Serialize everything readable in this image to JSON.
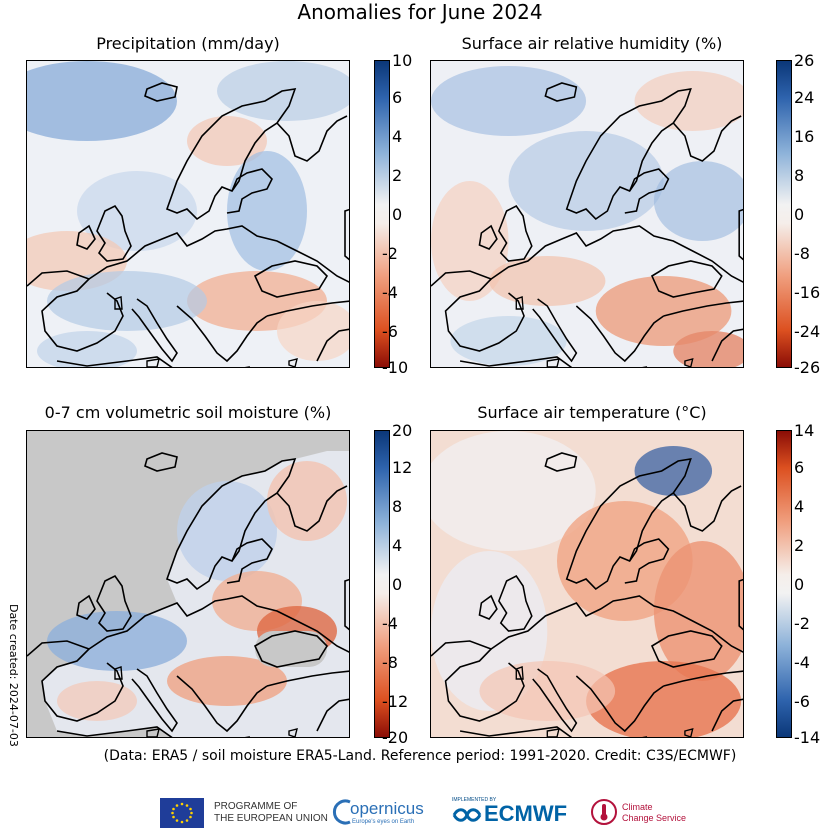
{
  "title": "Anomalies for June 2024",
  "footer": "(Data: ERA5 / soil moisture ERA5-Land.  Reference period: 1991-2020.  Credit: C3S/ECMWF)",
  "date_created": "Date created: 2024-07-03",
  "colors": {
    "wet": "#2b5ea8",
    "dry": "#c23010",
    "neutral": "#f5f3f0",
    "land_mask": "#c8c8c8",
    "coast": "#000000"
  },
  "panels": [
    {
      "title": "Precipitation (mm/day)",
      "colorbar_ticks": [
        "10",
        "6",
        "4",
        "2",
        "0",
        "-2",
        "-4",
        "-6",
        "-10"
      ],
      "colorbar_scheme": "blue-top"
    },
    {
      "title": "Surface air relative humidity (%)",
      "colorbar_ticks": [
        "26",
        "24",
        "16",
        "8",
        "0",
        "-8",
        "-16",
        "-24",
        "-26"
      ],
      "colorbar_scheme": "blue-top"
    },
    {
      "title": "0-7 cm volumetric soil moisture (%)",
      "colorbar_ticks": [
        "20",
        "12",
        "8",
        "4",
        "0",
        "-4",
        "-8",
        "-12",
        "-20"
      ],
      "colorbar_scheme": "blue-top"
    },
    {
      "title": "Surface air temperature (°C)",
      "colorbar_ticks": [
        "14",
        "6",
        "4",
        "2",
        "0",
        "-2",
        "-4",
        "-6",
        "-14"
      ],
      "colorbar_scheme": "red-top"
    }
  ],
  "logos": {
    "eu": {
      "line1": "PROGRAMME OF",
      "line2": "THE EUROPEAN UNION"
    },
    "copernicus": {
      "name": "opernicus",
      "tagline": "Europe's eyes on Earth"
    },
    "ecmwf": {
      "implemented": "IMPLEMENTED BY",
      "name": "ECMWF"
    },
    "c3s": {
      "line1": "Climate",
      "line2": "Change Service"
    }
  }
}
